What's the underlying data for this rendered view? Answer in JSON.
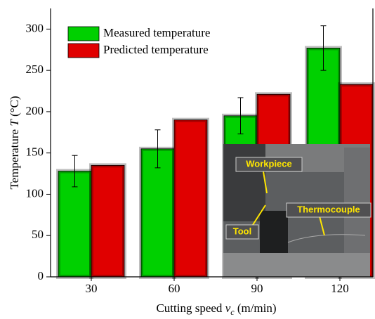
{
  "chart_data": {
    "type": "bar",
    "xlabel": {
      "text": "Cutting speed ",
      "symbol": "v",
      "subscript": "c",
      "unit": " (m/min)"
    },
    "ylabel": {
      "text": "Temperature ",
      "symbol": "T",
      "unit": " (°C)"
    },
    "categories": [
      "30",
      "60",
      "90",
      "120"
    ],
    "series": [
      {
        "name": "Measured temperature",
        "color": "#00d000",
        "values": [
          128,
          155,
          195,
          277
        ],
        "errors": [
          19,
          23,
          22,
          27
        ]
      },
      {
        "name": "Predicted temperature",
        "color": "#e00000",
        "values": [
          135,
          190,
          221,
          233
        ]
      }
    ],
    "ylim": [
      0,
      325
    ],
    "yticks": [
      0,
      50,
      100,
      150,
      200,
      250,
      300
    ],
    "legend": "upper left",
    "annotations": [
      "Workpiece",
      "Tool",
      "Thermocouple"
    ]
  }
}
